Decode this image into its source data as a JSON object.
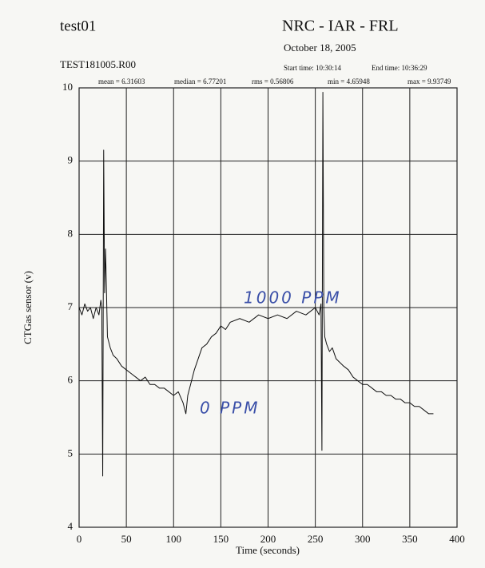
{
  "chart_data": {
    "type": "line",
    "title": "test01",
    "header": "NRC - IAR - FRL",
    "date": "October 18, 2005",
    "file": "TEST181005.R00",
    "start_time": "Start time: 10:30:14",
    "end_time": "End time: 10:36:29",
    "stats": [
      "mean = 6.31603",
      "median = 6.77201",
      "rms = 0.56806",
      "min = 4.65948",
      "max = 9.93749"
    ],
    "annotations": [
      "1000 PPM",
      "0 PPM"
    ],
    "x_label": "Time (seconds)",
    "y_label": "CTGas sensor (v)",
    "xlim": [
      0,
      400
    ],
    "ylim": [
      4,
      10
    ],
    "xticks": [
      0,
      50,
      100,
      150,
      200,
      250,
      300,
      350,
      400
    ],
    "yticks": [
      4,
      5,
      6,
      7,
      8,
      9,
      10
    ],
    "grid": true,
    "color": "#111111",
    "x": [
      0,
      3,
      6,
      9,
      12,
      15,
      18,
      21,
      23,
      24,
      25,
      26,
      27,
      28,
      30,
      33,
      36,
      40,
      45,
      50,
      55,
      60,
      65,
      70,
      75,
      80,
      85,
      90,
      95,
      100,
      105,
      110,
      113,
      115,
      118,
      122,
      126,
      130,
      135,
      140,
      145,
      150,
      155,
      160,
      170,
      180,
      190,
      200,
      210,
      220,
      230,
      240,
      245,
      250,
      254,
      256,
      257,
      258,
      259,
      260,
      262,
      265,
      268,
      272,
      276,
      280,
      285,
      290,
      295,
      300,
      305,
      310,
      315,
      320,
      325,
      330,
      335,
      340,
      345,
      350,
      355,
      360,
      365,
      370,
      375
    ],
    "values": [
      7.0,
      6.9,
      7.05,
      6.95,
      7.0,
      6.85,
      7.0,
      6.9,
      7.1,
      7.0,
      4.7,
      9.15,
      7.2,
      7.8,
      6.6,
      6.45,
      6.35,
      6.3,
      6.2,
      6.15,
      6.1,
      6.05,
      6.0,
      6.05,
      5.95,
      5.95,
      5.9,
      5.9,
      5.85,
      5.8,
      5.85,
      5.7,
      5.55,
      5.8,
      5.95,
      6.15,
      6.3,
      6.45,
      6.5,
      6.6,
      6.65,
      6.75,
      6.7,
      6.8,
      6.85,
      6.8,
      6.9,
      6.85,
      6.9,
      6.85,
      6.95,
      6.9,
      6.95,
      7.0,
      6.9,
      7.05,
      5.05,
      9.94,
      7.0,
      6.6,
      6.5,
      6.4,
      6.45,
      6.3,
      6.25,
      6.2,
      6.15,
      6.05,
      6.0,
      5.95,
      5.95,
      5.9,
      5.85,
      5.85,
      5.8,
      5.8,
      5.75,
      5.75,
      5.7,
      5.7,
      5.65,
      5.65,
      5.6,
      5.55,
      5.55
    ]
  }
}
